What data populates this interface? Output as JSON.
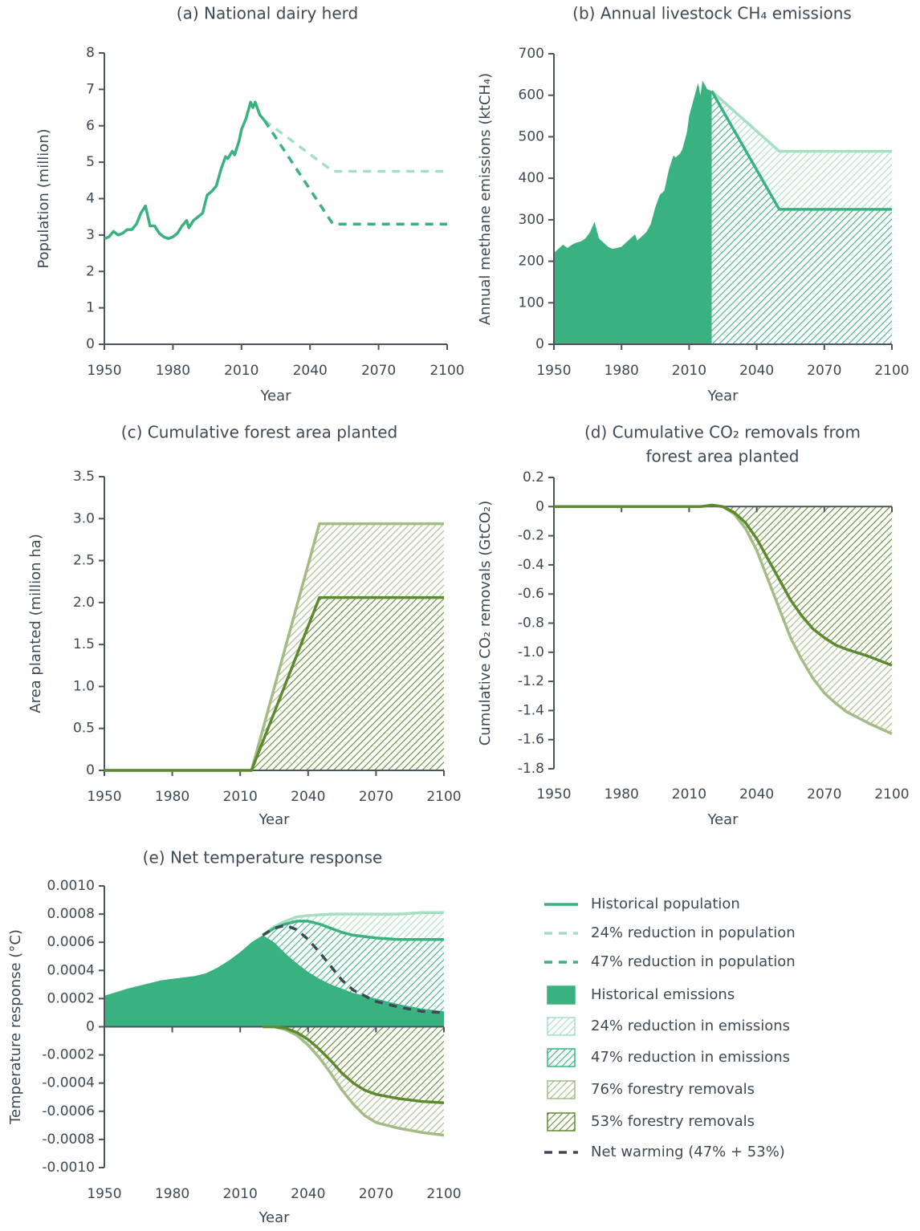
{
  "chart_data": [
    {
      "type": "line",
      "title": "(a) National dairy herd",
      "xlabel": "Year",
      "ylabel": "Population (million)",
      "xlim": [
        1950,
        2100
      ],
      "xticks": [
        1950,
        1980,
        2010,
        2040,
        2070,
        2100
      ],
      "ylim": [
        0,
        8
      ],
      "yticks": [
        0,
        1,
        2,
        3,
        4,
        5,
        6,
        7,
        8
      ],
      "series": [
        {
          "name": "Historical population",
          "style": "line",
          "color": "#3ab27f",
          "x": [
            1950,
            1952,
            1954,
            1956,
            1958,
            1960,
            1962,
            1964,
            1966,
            1968,
            1970,
            1972,
            1974,
            1976,
            1978,
            1980,
            1982,
            1984,
            1986,
            1987,
            1989,
            1991,
            1993,
            1995,
            1997,
            1999,
            2001,
            2003,
            2004,
            2006,
            2007,
            2009,
            2010,
            2012,
            2014,
            2015,
            2016,
            2018,
            2020
          ],
          "values": [
            2.9,
            2.95,
            3.1,
            3.0,
            3.05,
            3.15,
            3.15,
            3.3,
            3.6,
            3.8,
            3.25,
            3.25,
            3.05,
            2.95,
            2.9,
            2.95,
            3.05,
            3.25,
            3.4,
            3.2,
            3.4,
            3.5,
            3.6,
            4.1,
            4.2,
            4.35,
            4.8,
            5.15,
            5.1,
            5.3,
            5.2,
            5.6,
            5.9,
            6.2,
            6.65,
            6.5,
            6.65,
            6.3,
            6.15
          ]
        },
        {
          "name": "24% reduction in population",
          "style": "dashed",
          "color": "#a6dec2",
          "x": [
            2020,
            2050,
            2100
          ],
          "values": [
            6.15,
            4.75,
            4.75
          ]
        },
        {
          "name": "47% reduction in population",
          "style": "dashed",
          "color": "#3ab27f",
          "x": [
            2020,
            2050,
            2100
          ],
          "values": [
            6.15,
            3.3,
            3.3
          ]
        }
      ]
    },
    {
      "type": "area",
      "title": "(b) Annual livestock CH₄ emissions",
      "xlabel": "Year",
      "ylabel": "Annual methane emissions (ktCH₄)",
      "xlim": [
        1950,
        2100
      ],
      "xticks": [
        1950,
        1980,
        2010,
        2040,
        2070,
        2100
      ],
      "ylim": [
        0,
        700
      ],
      "yticks": [
        0,
        100,
        200,
        300,
        400,
        500,
        600,
        700
      ],
      "series": [
        {
          "style": "area",
          "color": "#3ab27f",
          "x": [
            1950,
            1952,
            1954,
            1956,
            1958,
            1960,
            1962,
            1964,
            1966,
            1968,
            1970,
            1972,
            1974,
            1976,
            1978,
            1980,
            1982,
            1984,
            1986,
            1987,
            1989,
            1991,
            1993,
            1995,
            1997,
            1999,
            2001,
            2003,
            2004,
            2006,
            2007,
            2009,
            2010,
            2012,
            2014,
            2015,
            2016,
            2018,
            2020
          ],
          "values": [
            220,
            230,
            240,
            232,
            240,
            245,
            248,
            255,
            270,
            295,
            255,
            245,
            235,
            230,
            232,
            235,
            245,
            255,
            265,
            250,
            260,
            270,
            290,
            330,
            360,
            370,
            420,
            455,
            450,
            460,
            470,
            510,
            550,
            590,
            630,
            600,
            635,
            615,
            610
          ]
        },
        {
          "style": "hatch",
          "color": "#a6dec2",
          "x": [
            2020,
            2050,
            2100
          ],
          "values": [
            610,
            465,
            465
          ]
        },
        {
          "style": "hatch",
          "color": "#3ab27f",
          "x": [
            2020,
            2050,
            2100
          ],
          "values": [
            610,
            325,
            325
          ]
        }
      ]
    },
    {
      "type": "area",
      "title": "(c) Cumulative forest area planted",
      "xlabel": "Year",
      "ylabel": "Area planted (million ha)",
      "xlim": [
        1950,
        2100
      ],
      "xticks": [
        1950,
        1980,
        2010,
        2040,
        2070,
        2100
      ],
      "ylim": [
        0,
        3.5
      ],
      "yticks": [
        0,
        0.5,
        {
          "value": 1,
          "label": "1.0"
        },
        1.5,
        {
          "value": 2,
          "label": "2.0"
        },
        2.5,
        {
          "value": 3,
          "label": "3.0"
        },
        3.5
      ],
      "series": [
        {
          "style": "hatch",
          "color": "#a3bb85",
          "x": [
            1950,
            2015,
            2045,
            2100
          ],
          "values": [
            0,
            0,
            2.94,
            2.94
          ]
        },
        {
          "style": "hatch",
          "color": "#5d8a2f",
          "x": [
            1950,
            2015,
            2045,
            2100
          ],
          "values": [
            0,
            0,
            2.06,
            2.06
          ]
        }
      ]
    },
    {
      "type": "area",
      "title": [
        "(d) Cumulative CO₂ removals from",
        "forest area planted"
      ],
      "xlabel": "Year",
      "ylabel": "Cumulative CO₂ removals (GtCO₂)",
      "xlim": [
        1950,
        2100
      ],
      "xticks": [
        1950,
        1980,
        2010,
        2040,
        2070,
        2100
      ],
      "ylim": [
        -1.8,
        0.2
      ],
      "yticks": [
        -1.8,
        -1.6,
        -1.4,
        -1.2,
        {
          "value": -1,
          "label": "-1.0"
        },
        -0.8,
        -0.6,
        -0.4,
        -0.2,
        0,
        0.2
      ],
      "series": [
        {
          "style": "hatch",
          "color": "#a3bb85",
          "x": [
            1950,
            2015,
            2020,
            2025,
            2030,
            2035,
            2040,
            2045,
            2050,
            2055,
            2060,
            2065,
            2070,
            2075,
            2080,
            2090,
            2100
          ],
          "values": [
            0,
            0,
            0.01,
            0,
            -0.05,
            -0.15,
            -0.3,
            -0.5,
            -0.7,
            -0.9,
            -1.05,
            -1.18,
            -1.28,
            -1.35,
            -1.41,
            -1.49,
            -1.56
          ]
        },
        {
          "style": "hatch",
          "color": "#5d8a2f",
          "x": [
            1950,
            2015,
            2020,
            2025,
            2030,
            2035,
            2040,
            2045,
            2050,
            2055,
            2060,
            2065,
            2070,
            2075,
            2080,
            2090,
            2100
          ],
          "values": [
            0,
            0,
            0.01,
            0,
            -0.04,
            -0.11,
            -0.22,
            -0.36,
            -0.5,
            -0.64,
            -0.75,
            -0.84,
            -0.9,
            -0.95,
            -0.98,
            -1.03,
            -1.09
          ]
        }
      ]
    },
    {
      "type": "area",
      "title": "(e) Net temperature response",
      "xlabel": "Year",
      "ylabel": "Temperature response (°C)",
      "xlim": [
        1950,
        2100
      ],
      "xticks": [
        1950,
        1980,
        2010,
        2040,
        2070,
        2100
      ],
      "ylim": [
        -0.001,
        0.001
      ],
      "yticks": [
        {
          "value": -0.001,
          "label": "-0.0010"
        },
        -0.0008,
        -0.0006,
        -0.0004,
        -0.0002,
        0,
        0.0002,
        0.0004,
        0.0006,
        0.0008,
        {
          "value": 0.001,
          "label": "0.0010"
        }
      ],
      "series": [
        {
          "name": "Historical emissions",
          "style": "area",
          "color": "#3ab27f",
          "x": [
            1950,
            1960,
            1970,
            1975,
            1980,
            1990,
            1995,
            2000,
            2005,
            2010,
            2015,
            2020,
            2025,
            2030,
            2035,
            2040,
            2045,
            2050,
            2060,
            2070,
            2080,
            2090,
            2100
          ],
          "values": [
            0.00022,
            0.00027,
            0.00031,
            0.00033,
            0.00034,
            0.00036,
            0.00038,
            0.00042,
            0.00047,
            0.00053,
            0.0006,
            0.00065,
            0.0006,
            0.00052,
            0.00045,
            0.00039,
            0.00034,
            0.0003,
            0.00024,
            0.0002,
            0.00016,
            0.00013,
            0.00011
          ]
        },
        {
          "name": "24% reduction in emissions",
          "style": "hatch",
          "color": "#a6dec2",
          "x": [
            2020,
            2025,
            2030,
            2035,
            2040,
            2050,
            2060,
            2070,
            2080,
            2090,
            2100
          ],
          "values": [
            0.00065,
            0.00071,
            0.00075,
            0.00078,
            0.00079,
            0.0008,
            0.0008,
            0.0008,
            0.0008,
            0.00081,
            0.00081
          ]
        },
        {
          "name": "47% reduction in emissions",
          "style": "hatch",
          "color": "#3ab27f",
          "x": [
            2020,
            2025,
            2030,
            2035,
            2040,
            2045,
            2050,
            2055,
            2060,
            2070,
            2080,
            2090,
            2100
          ],
          "values": [
            0.00065,
            0.0007,
            0.00073,
            0.00075,
            0.00075,
            0.00073,
            0.0007,
            0.00067,
            0.00065,
            0.00063,
            0.00062,
            0.00062,
            0.00062
          ]
        },
        {
          "name": "76% forestry removals",
          "style": "hatch",
          "color": "#a3bb85",
          "x": [
            2020,
            2025,
            2030,
            2035,
            2040,
            2045,
            2050,
            2055,
            2060,
            2065,
            2070,
            2080,
            2090,
            2100
          ],
          "values": [
            0,
            0,
            -2e-05,
            -6e-05,
            -0.00013,
            -0.00022,
            -0.00033,
            -0.00045,
            -0.00055,
            -0.00063,
            -0.00068,
            -0.00072,
            -0.00075,
            -0.00077
          ]
        },
        {
          "name": "53% forestry removals",
          "style": "hatch",
          "color": "#5d8a2f",
          "x": [
            2020,
            2025,
            2030,
            2035,
            2040,
            2045,
            2050,
            2055,
            2060,
            2065,
            2070,
            2080,
            2090,
            2100
          ],
          "values": [
            0,
            0,
            -1e-05,
            -4e-05,
            -9e-05,
            -0.00016,
            -0.00024,
            -0.00033,
            -0.0004,
            -0.00045,
            -0.00048,
            -0.00051,
            -0.00053,
            -0.00054
          ]
        },
        {
          "name": "Net warming (47% + 53%)",
          "style": "dashed",
          "color": "#3d4a55",
          "x": [
            2020,
            2025,
            2030,
            2035,
            2040,
            2045,
            2050,
            2055,
            2060,
            2070,
            2080,
            2090,
            2100
          ],
          "values": [
            0.00065,
            0.0007,
            0.00072,
            0.00069,
            0.00062,
            0.00053,
            0.00043,
            0.00033,
            0.00026,
            0.00018,
            0.00014,
            0.00011,
            0.0001
          ]
        }
      ]
    }
  ]
}
